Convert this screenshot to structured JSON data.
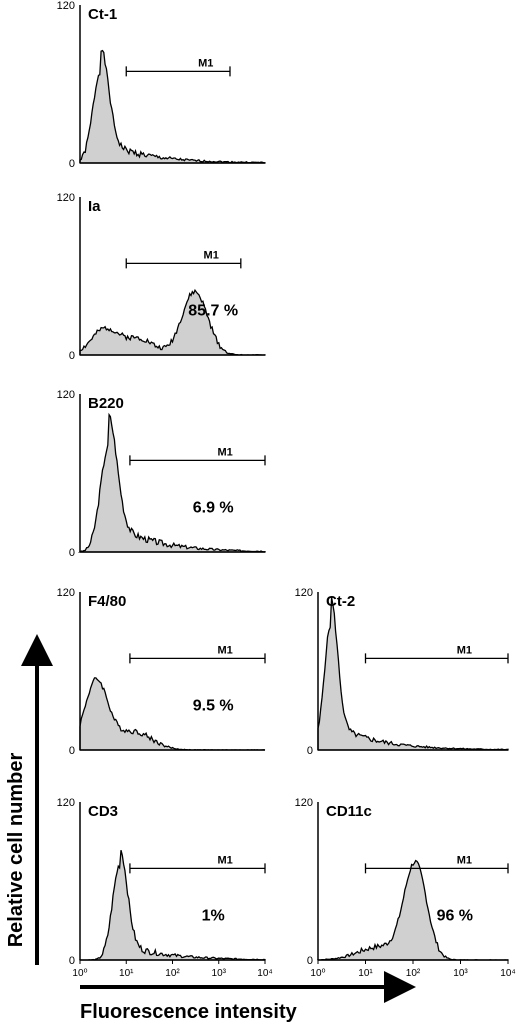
{
  "figure": {
    "y_axis_label": "Relative cell number",
    "x_axis_label": "Fluorescence intensity"
  },
  "colors": {
    "fill": "#d0d0d0",
    "line": "#000000"
  },
  "chart_data": [
    {
      "type": "area",
      "id": "ct1",
      "title": "Ct-1",
      "ylim": [
        0,
        120
      ],
      "xscale": "log",
      "xlim": [
        1,
        10000
      ],
      "yticks": [
        "0",
        "120"
      ],
      "marker": {
        "label": "M1",
        "range": [
          10,
          1750
        ]
      },
      "percent": "",
      "peaks": [
        {
          "mu": 0.45,
          "sd": 0.17,
          "amp": 70,
          "tailw": 0.25
        }
      ],
      "noise": 5,
      "seed": 1
    },
    {
      "type": "area",
      "id": "ia",
      "title": "Ia",
      "ylim": [
        0,
        120
      ],
      "xscale": "log",
      "xlim": [
        1,
        10000
      ],
      "yticks": [
        "0",
        "120"
      ],
      "marker": {
        "label": "M1",
        "range": [
          10,
          3000
        ]
      },
      "percent": "85.7 %",
      "peaks": [
        {
          "mu": 0.55,
          "sd": 0.3,
          "amp": 20,
          "tailw": 0
        },
        {
          "mu": 1.3,
          "sd": 0.3,
          "amp": 12,
          "tailw": 0
        },
        {
          "mu": 2.48,
          "sd": 0.28,
          "amp": 48,
          "tailw": 0
        }
      ],
      "noise": 4,
      "seed": 2
    },
    {
      "type": "area",
      "id": "b220",
      "title": "B220",
      "ylim": [
        0,
        120
      ],
      "xscale": "log",
      "xlim": [
        1,
        10000
      ],
      "yticks": [
        "0",
        "120"
      ],
      "marker": {
        "label": "M1",
        "range": [
          12,
          10000
        ]
      },
      "percent": "6.9 %",
      "peaks": [
        {
          "mu": 0.62,
          "sd": 0.18,
          "amp": 80,
          "tailw": 0.3
        }
      ],
      "noise": 5,
      "seed": 3
    },
    {
      "type": "area",
      "id": "f480",
      "title": "F4/80",
      "ylim": [
        0,
        120
      ],
      "xscale": "log",
      "xlim": [
        1,
        10000
      ],
      "yticks": [
        "0",
        "120"
      ],
      "marker": {
        "label": "M1",
        "range": [
          12,
          10000
        ]
      },
      "percent": "9.5 %",
      "peaks": [
        {
          "mu": 0.35,
          "sd": 0.25,
          "amp": 52,
          "tailw": 0
        },
        {
          "mu": 1.15,
          "sd": 0.4,
          "amp": 14,
          "tailw": 0
        }
      ],
      "noise": 4,
      "seed": 4
    },
    {
      "type": "area",
      "id": "ct2",
      "title": "Ct-2",
      "ylim": [
        0,
        120
      ],
      "xscale": "log",
      "xlim": [
        1,
        10000
      ],
      "yticks": [
        "0",
        "120"
      ],
      "marker": {
        "label": "M1",
        "range": [
          10,
          10000
        ]
      },
      "percent": "",
      "peaks": [
        {
          "mu": 0.27,
          "sd": 0.14,
          "amp": 95,
          "tailw": 0.22
        }
      ],
      "noise": 4,
      "seed": 5
    },
    {
      "type": "area",
      "id": "cd3",
      "title": "CD3",
      "ylim": [
        0,
        120
      ],
      "xscale": "log",
      "xlim": [
        1,
        10000
      ],
      "yticks": [
        "0",
        "120"
      ],
      "marker": {
        "label": "M1",
        "range": [
          12,
          10000
        ]
      },
      "percent": "1%",
      "peaks": [
        {
          "mu": 0.86,
          "sd": 0.16,
          "amp": 72,
          "tailw": 0.18
        }
      ],
      "noise": 5,
      "seed": 6
    },
    {
      "type": "area",
      "id": "cd11c",
      "title": "CD11c",
      "ylim": [
        0,
        120
      ],
      "xscale": "log",
      "xlim": [
        1,
        10000
      ],
      "yticks": [
        "0",
        "120"
      ],
      "xticks": [
        "10⁰",
        "10¹",
        "10²",
        "10³",
        "10⁴"
      ],
      "marker": {
        "label": "M1",
        "range": [
          10,
          10000
        ]
      },
      "percent": "96 %",
      "peaks": [
        {
          "mu": 2.05,
          "sd": 0.24,
          "amp": 72,
          "tailw": 0
        },
        {
          "mu": 1.3,
          "sd": 0.45,
          "amp": 10,
          "tailw": 0
        }
      ],
      "noise": 4,
      "seed": 7
    }
  ]
}
